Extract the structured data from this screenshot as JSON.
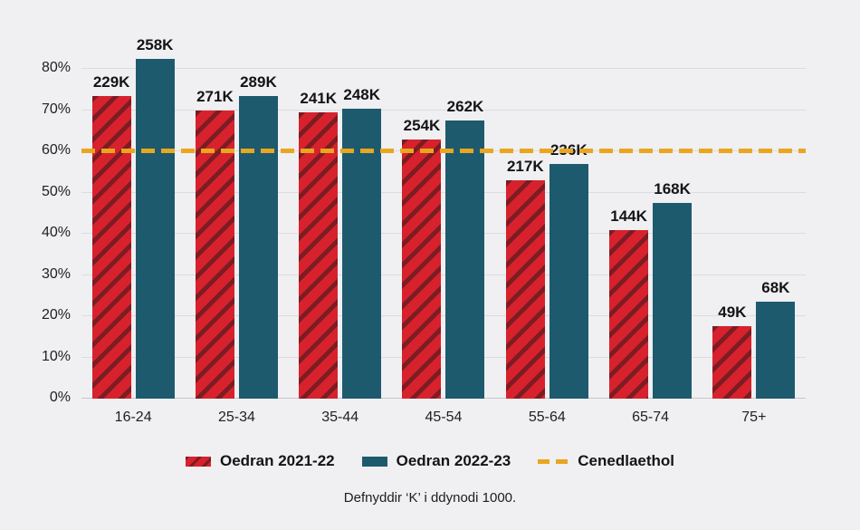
{
  "page": {
    "background": "#f0eff1"
  },
  "colors": {
    "bar_2021_22": "#d7222d",
    "bar_2021_22_stripe": "#7c1c23",
    "bar_2022_23": "#1d5a6e",
    "national_line": "#e9a61f",
    "gridline": "#dcdbde",
    "baseline": "#c7c6ca",
    "text": "#1d1d1f"
  },
  "chart_data": {
    "type": "bar",
    "title": "",
    "categories": [
      "16-24",
      "25-34",
      "35-44",
      "45-54",
      "55-64",
      "65-74",
      "75+"
    ],
    "series": [
      {
        "name": "Oedran 2021-22",
        "style": "hatched-red",
        "values_pct": [
          73.5,
          70,
          69.5,
          63,
          53,
          41,
          17.5
        ],
        "labels": [
          "229K",
          "271K",
          "241K",
          "254K",
          "217K",
          "144K",
          "49K"
        ]
      },
      {
        "name": "Oedran 2022-23",
        "style": "solid-teal",
        "values_pct": [
          82.5,
          73.5,
          70.5,
          67.5,
          57,
          47.5,
          23.5
        ],
        "labels": [
          "258K",
          "289K",
          "248K",
          "262K",
          "236K",
          "168K",
          "68K"
        ]
      }
    ],
    "reference_line": {
      "name": "Cenedlaethol",
      "value_pct": 60
    },
    "y_ticks": [
      {
        "value": 0,
        "label": "0%"
      },
      {
        "value": 10,
        "label": "10%"
      },
      {
        "value": 20,
        "label": "20%"
      },
      {
        "value": 30,
        "label": "30%"
      },
      {
        "value": 40,
        "label": "40%"
      },
      {
        "value": 50,
        "label": "50%"
      },
      {
        "value": 60,
        "label": "60%"
      },
      {
        "value": 70,
        "label": "70%"
      },
      {
        "value": 80,
        "label": "80%"
      }
    ],
    "ylim": [
      0,
      88
    ],
    "grid": true,
    "legend_position": "bottom",
    "note": "Defnyddir ‘K’ i ddynodi 1000."
  }
}
